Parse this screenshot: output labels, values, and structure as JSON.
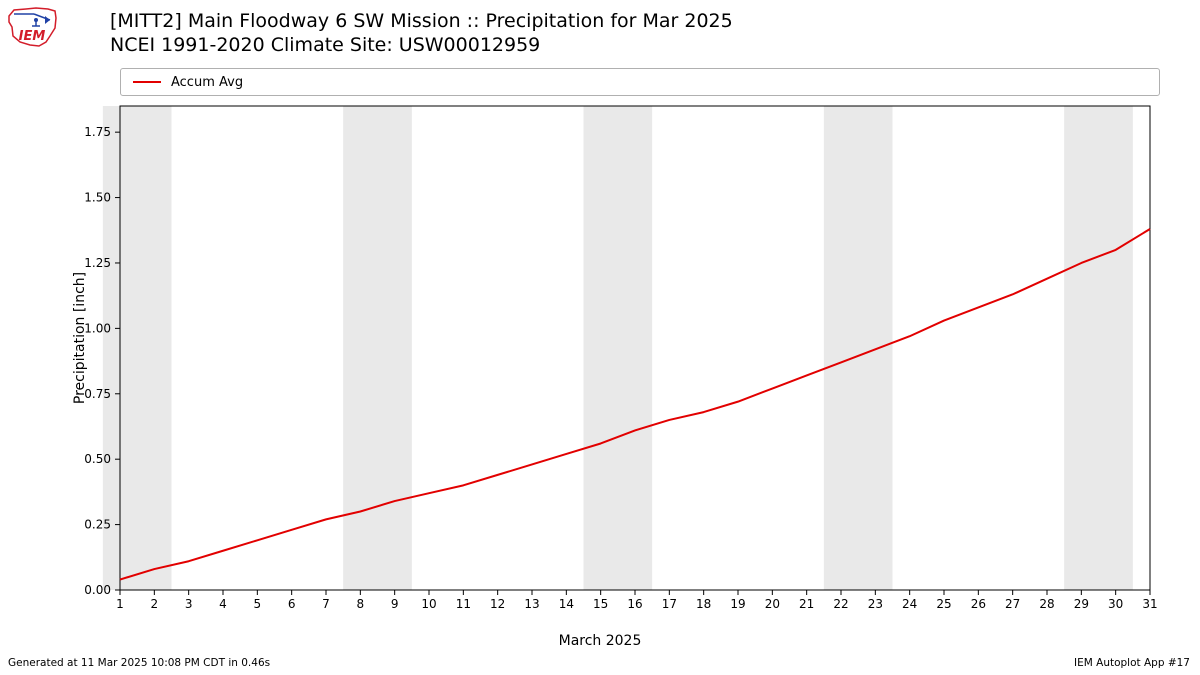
{
  "title_line1": "[MITT2] Main Floodway 6 SW Mission :: Precipitation for Mar 2025",
  "title_line2": "NCEI 1991-2020 Climate Site: USW00012959",
  "legend": {
    "label": "Accum Avg",
    "color": "#e20000"
  },
  "ylabel": "Precipitation [inch]",
  "xlabel": "March 2025",
  "footer_left": "Generated at 11 Mar 2025 10:08 PM CDT in 0.46s",
  "footer_right": "IEM Autoplot App #17",
  "chart": {
    "type": "line",
    "background_color": "#ffffff",
    "plot_bg": "#ffffff",
    "band_color": "#e9e9e9",
    "axis_color": "#000000",
    "xlim": [
      1,
      31
    ],
    "ylim": [
      0,
      1.85
    ],
    "yticks": [
      0.0,
      0.25,
      0.5,
      0.75,
      1.0,
      1.25,
      1.5,
      1.75
    ],
    "xticks": [
      1,
      2,
      3,
      4,
      5,
      6,
      7,
      8,
      9,
      10,
      11,
      12,
      13,
      14,
      15,
      16,
      17,
      18,
      19,
      20,
      21,
      22,
      23,
      24,
      25,
      26,
      27,
      28,
      29,
      30,
      31
    ],
    "bands": [
      [
        1,
        2
      ],
      [
        8,
        9
      ],
      [
        15,
        16
      ],
      [
        22,
        23
      ],
      [
        29,
        30
      ]
    ],
    "series": {
      "color": "#e20000",
      "line_width": 2,
      "x": [
        1,
        2,
        3,
        4,
        5,
        6,
        7,
        8,
        9,
        10,
        11,
        12,
        13,
        14,
        15,
        16,
        17,
        18,
        19,
        20,
        21,
        22,
        23,
        24,
        25,
        26,
        27,
        28,
        29,
        30,
        31
      ],
      "y": [
        0.04,
        0.08,
        0.11,
        0.15,
        0.19,
        0.23,
        0.27,
        0.3,
        0.34,
        0.37,
        0.4,
        0.44,
        0.48,
        0.52,
        0.56,
        0.61,
        0.65,
        0.68,
        0.72,
        0.77,
        0.82,
        0.87,
        0.92,
        0.97,
        1.03,
        1.08,
        1.13,
        1.19,
        1.25,
        1.3,
        1.38
      ]
    }
  },
  "logo": {
    "outline_color": "#d31d2a",
    "accent_color": "#2042a6"
  }
}
